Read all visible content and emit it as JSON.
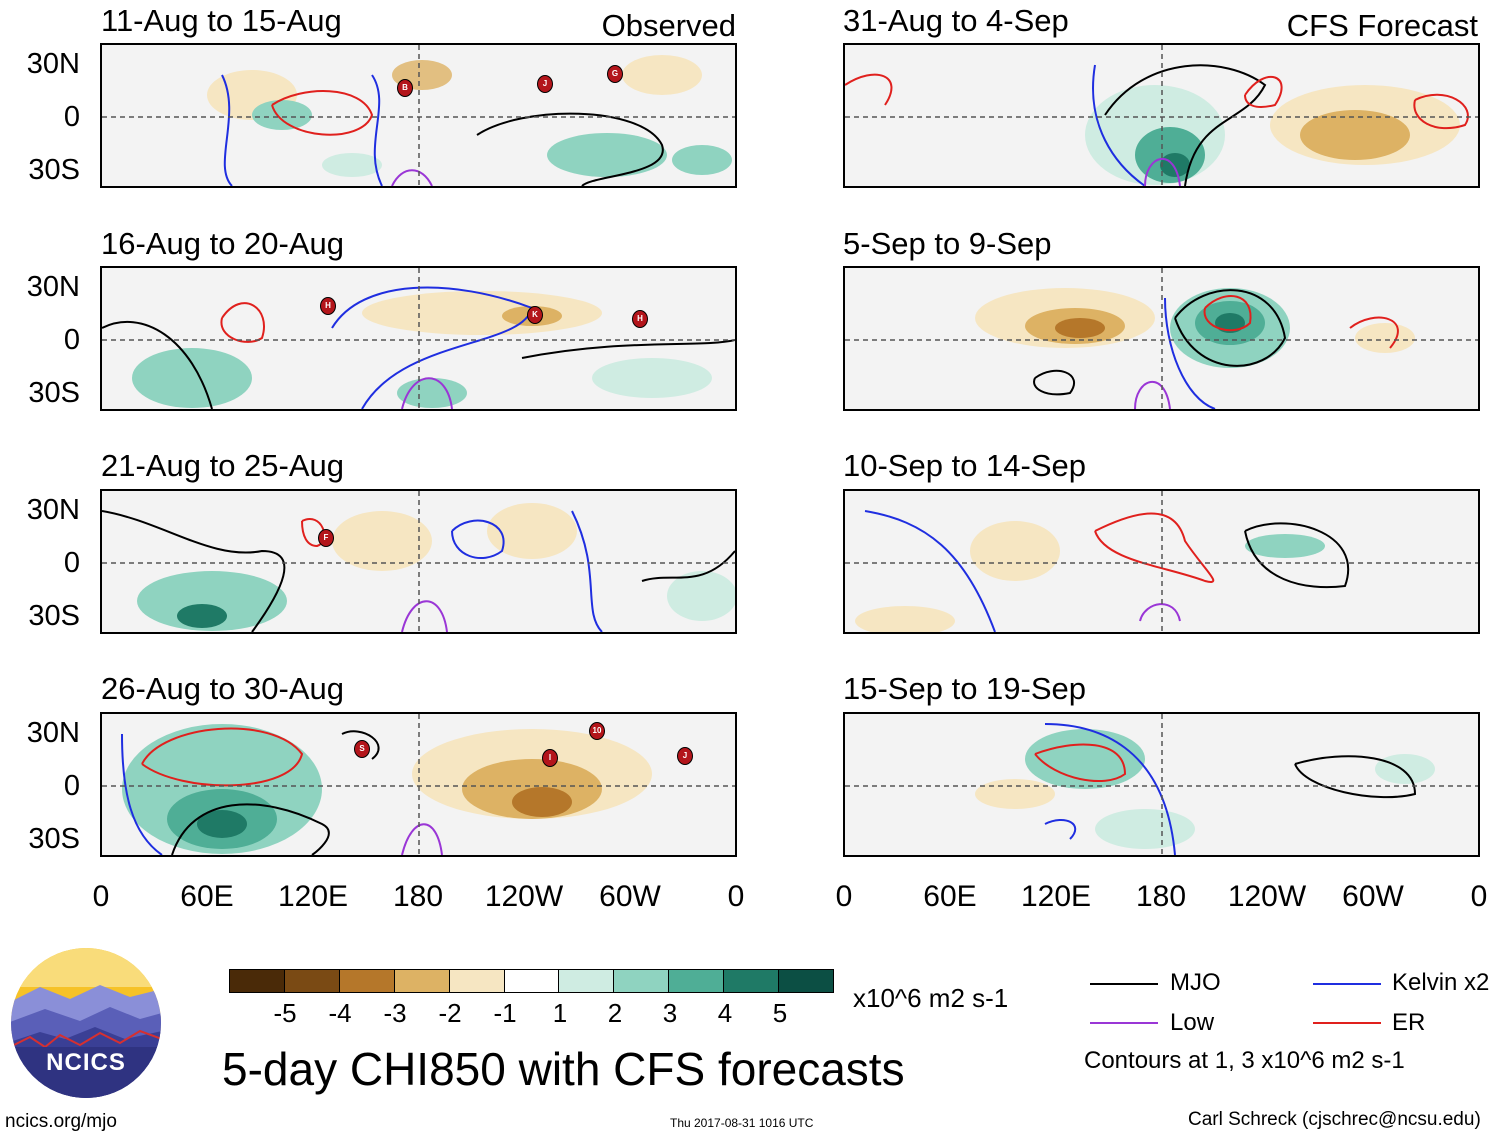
{
  "panels": [
    {
      "title": "11-Aug to 15-Aug",
      "corner": "Observed"
    },
    {
      "title": "16-Aug to 20-Aug",
      "corner": ""
    },
    {
      "title": "21-Aug to 25-Aug",
      "corner": ""
    },
    {
      "title": "26-Aug to 30-Aug",
      "corner": ""
    },
    {
      "title": "31-Aug to 4-Sep",
      "corner": "CFS Forecast"
    },
    {
      "title": "5-Sep to 9-Sep",
      "corner": ""
    },
    {
      "title": "10-Sep to 14-Sep",
      "corner": ""
    },
    {
      "title": "15-Sep to 19-Sep",
      "corner": ""
    }
  ],
  "lat_labels": [
    "30N",
    "0",
    "30S"
  ],
  "lon_labels": [
    "0",
    "60E",
    "120E",
    "180",
    "120W",
    "60W",
    "0"
  ],
  "storms": {
    "p0": [
      "B",
      "J",
      "G"
    ],
    "p1": [
      "H",
      "K",
      "H"
    ],
    "p2": [
      "F"
    ],
    "p3": [
      "S",
      "I",
      "10",
      "J"
    ]
  },
  "colorbar": {
    "colors": [
      "#4a2a08",
      "#7a4a14",
      "#b5772a",
      "#ddb264",
      "#f6e6c2",
      "#ffffff",
      "#cfece2",
      "#8fd3c0",
      "#4fae96",
      "#1f7a66",
      "#0c4f44"
    ],
    "ticks": [
      "-5",
      "-4",
      "-3",
      "-2",
      "-1",
      "1",
      "2",
      "3",
      "4",
      "5"
    ],
    "units": "x10^6 m2 s-1"
  },
  "legend": {
    "items": [
      {
        "label": "MJO",
        "color": "#000000"
      },
      {
        "label": "Kelvin x2",
        "color": "#1f2ee0"
      },
      {
        "label": "Low",
        "color": "#9a36d6"
      },
      {
        "label": "ER",
        "color": "#e0201d"
      }
    ],
    "note": "Contours at 1, 3 x10^6 m2 s-1"
  },
  "logo": {
    "text": "NCICS"
  },
  "main_title": "5-day CHI850 with CFS forecasts",
  "footer": {
    "url": "ncics.org/mjo",
    "timestamp": "Thu 2017-08-31 1016 UTC",
    "author": "Carl Schreck (cjschrec@ncsu.edu)"
  }
}
